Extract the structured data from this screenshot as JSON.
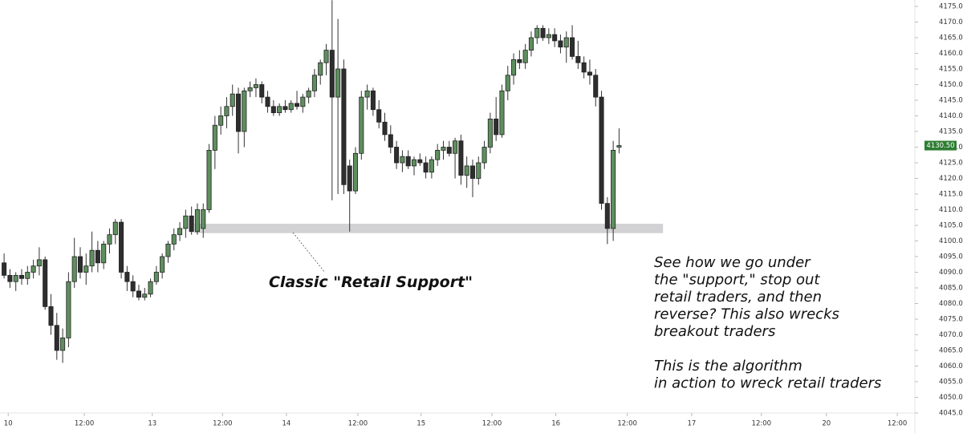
{
  "chart_data": {
    "type": "candlestick",
    "categories": [
      null,
      null,
      null,
      null,
      null,
      null,
      null,
      null,
      null,
      null,
      null,
      null,
      null,
      null,
      null,
      null,
      null,
      null,
      null,
      null,
      null,
      null,
      null,
      null,
      null,
      null,
      null,
      null,
      null,
      null,
      null,
      null,
      null,
      null,
      null,
      null,
      null,
      null,
      null,
      null,
      null,
      null,
      null,
      null,
      null,
      null,
      null,
      null,
      null,
      null,
      null,
      null,
      null,
      null,
      null,
      null,
      null,
      null,
      null,
      null,
      null,
      null,
      null,
      null,
      null,
      null,
      null,
      null,
      null,
      null,
      null,
      null,
      null,
      null,
      null,
      null,
      null,
      null,
      null,
      null,
      null,
      null,
      null,
      null,
      null,
      null,
      null,
      null,
      null,
      null,
      null,
      null,
      null,
      null,
      null,
      null,
      null,
      null,
      null,
      null,
      null,
      null,
      null,
      null,
      null,
      null
    ],
    "ohlc": [
      [
        4093,
        4096,
        4088,
        4089
      ],
      [
        4089,
        4091,
        4085,
        4087
      ],
      [
        4087,
        4090,
        4084,
        4089
      ],
      [
        4089,
        4091,
        4086,
        4088
      ],
      [
        4088,
        4092,
        4086,
        4090
      ],
      [
        4090,
        4094,
        4088,
        4092
      ],
      [
        4092,
        4098,
        4089,
        4094
      ],
      [
        4094,
        4095,
        4078,
        4079
      ],
      [
        4079,
        4083,
        4070,
        4073
      ],
      [
        4073,
        4077,
        4062,
        4065
      ],
      [
        4065,
        4072,
        4061,
        4069
      ],
      [
        4069,
        4090,
        4066,
        4087
      ],
      [
        4087,
        4101,
        4085,
        4095
      ],
      [
        4095,
        4098,
        4088,
        4090
      ],
      [
        4090,
        4096,
        4086,
        4092
      ],
      [
        4092,
        4103,
        4090,
        4097
      ],
      [
        4097,
        4100,
        4090,
        4093
      ],
      [
        4093,
        4100,
        4091,
        4099
      ],
      [
        4099,
        4104,
        4096,
        4102
      ],
      [
        4102,
        4107,
        4099,
        4106
      ],
      [
        4106,
        4107,
        4088,
        4090
      ],
      [
        4090,
        4092,
        4084,
        4087
      ],
      [
        4087,
        4089,
        4082,
        4084
      ],
      [
        4084,
        4086,
        4081,
        4082
      ],
      [
        4082,
        4085,
        4081,
        4083
      ],
      [
        4083,
        4088,
        4082,
        4087
      ],
      [
        4087,
        4092,
        4086,
        4090
      ],
      [
        4090,
        4096,
        4088,
        4095
      ],
      [
        4095,
        4100,
        4093,
        4099
      ],
      [
        4099,
        4104,
        4097,
        4102
      ],
      [
        4102,
        4106,
        4100,
        4104
      ],
      [
        4104,
        4110,
        4101,
        4108
      ],
      [
        4108,
        4111,
        4102,
        4103
      ],
      [
        4103,
        4112,
        4102,
        4110
      ],
      [
        4104,
        4112,
        4101,
        4110
      ],
      [
        4110,
        4131,
        4109,
        4129
      ],
      [
        4129,
        4140,
        4123,
        4137
      ],
      [
        4137,
        4143,
        4134,
        4140
      ],
      [
        4140,
        4146,
        4136,
        4143
      ],
      [
        4143,
        4150,
        4140,
        4147
      ],
      [
        4147,
        4149,
        4128,
        4135
      ],
      [
        4135,
        4149,
        4130,
        4148
      ],
      [
        4148,
        4151,
        4146,
        4149
      ],
      [
        4149,
        4152,
        4146,
        4150
      ],
      [
        4150,
        4151,
        4144,
        4146
      ],
      [
        4146,
        4148,
        4141,
        4143
      ],
      [
        4143,
        4145,
        4140,
        4141
      ],
      [
        4141,
        4144,
        4140,
        4143
      ],
      [
        4143,
        4145,
        4141,
        4142
      ],
      [
        4142,
        4145,
        4141,
        4144
      ],
      [
        4144,
        4148,
        4142,
        4143
      ],
      [
        4143,
        4147,
        4141,
        4146
      ],
      [
        4146,
        4149,
        4144,
        4148
      ],
      [
        4148,
        4155,
        4146,
        4153
      ],
      [
        4153,
        4158,
        4150,
        4157
      ],
      [
        4157,
        4163,
        4153,
        4161
      ],
      [
        4161,
        4177,
        4113,
        4146
      ],
      [
        4146,
        4171,
        4115,
        4155
      ],
      [
        4155,
        4158,
        4115,
        4118
      ],
      [
        4124,
        4126,
        4103,
        4116
      ],
      [
        4116,
        4130,
        4115,
        4128
      ],
      [
        4128,
        4148,
        4126,
        4146
      ],
      [
        4146,
        4150,
        4142,
        4148
      ],
      [
        4148,
        4149,
        4140,
        4142
      ],
      [
        4142,
        4145,
        4136,
        4138
      ],
      [
        4138,
        4141,
        4132,
        4134
      ],
      [
        4134,
        4137,
        4128,
        4130
      ],
      [
        4130,
        4132,
        4123,
        4125
      ],
      [
        4125,
        4129,
        4122,
        4127
      ],
      [
        4127,
        4129,
        4123,
        4124
      ],
      [
        4124,
        4127,
        4121,
        4126
      ],
      [
        4126,
        4128,
        4124,
        4125
      ],
      [
        4125,
        4127,
        4120,
        4122
      ],
      [
        4122,
        4127,
        4120,
        4126
      ],
      [
        4126,
        4131,
        4124,
        4129
      ],
      [
        4129,
        4132,
        4126,
        4130
      ],
      [
        4130,
        4132,
        4127,
        4128
      ],
      [
        4128,
        4133,
        4120,
        4132
      ],
      [
        4132,
        4134,
        4118,
        4121
      ],
      [
        4121,
        4127,
        4117,
        4124
      ],
      [
        4124,
        4126,
        4114,
        4120
      ],
      [
        4120,
        4127,
        4118,
        4125
      ],
      [
        4125,
        4132,
        4123,
        4130
      ],
      [
        4130,
        4141,
        4128,
        4139
      ],
      [
        4139,
        4146,
        4132,
        4134
      ],
      [
        4134,
        4150,
        4133,
        4148
      ],
      [
        4148,
        4156,
        4145,
        4153
      ],
      [
        4153,
        4160,
        4150,
        4158
      ],
      [
        4158,
        4161,
        4155,
        4157
      ],
      [
        4157,
        4163,
        4155,
        4161
      ],
      [
        4161,
        4167,
        4159,
        4165
      ],
      [
        4165,
        4169,
        4163,
        4168
      ],
      [
        4168,
        4169,
        4164,
        4165
      ],
      [
        4165,
        4168,
        4163,
        4166
      ],
      [
        4166,
        4168,
        4162,
        4164
      ],
      [
        4164,
        4166,
        4160,
        4162
      ],
      [
        4162,
        4167,
        4157,
        4165
      ],
      [
        4165,
        4169,
        4158,
        4159
      ],
      [
        4159,
        4164,
        4155,
        4157
      ],
      [
        4157,
        4159,
        4152,
        4154
      ],
      [
        4154,
        4158,
        4150,
        4153
      ],
      [
        4153,
        4155,
        4143,
        4146
      ],
      [
        4146,
        4148,
        4110,
        4112
      ],
      [
        4112,
        4114,
        4099,
        4104
      ],
      [
        4104,
        4132,
        4100,
        4129
      ],
      [
        4130,
        4136,
        4128,
        4130.5
      ]
    ],
    "up_color": "#5e8f5e",
    "down_color": "#2e2e2e",
    "wick_color": "#333333",
    "xlim": [
      -0.7,
      155.5
    ],
    "xticks": [
      {
        "value": 0.7,
        "label": "10"
      },
      {
        "value": 13.7,
        "label": "12:00"
      },
      {
        "value": 25.3,
        "label": "13"
      },
      {
        "value": 37.3,
        "label": "12:00"
      },
      {
        "value": 48.2,
        "label": "14"
      },
      {
        "value": 60.4,
        "label": "12:00"
      },
      {
        "value": 71.2,
        "label": "15"
      },
      {
        "value": 83.3,
        "label": "12:00"
      },
      {
        "value": 94.2,
        "label": "16"
      },
      {
        "value": 106.4,
        "label": "12:00"
      },
      {
        "value": 117.4,
        "label": "17"
      },
      {
        "value": 129.3,
        "label": "12:00"
      },
      {
        "value": 140.4,
        "label": "20"
      },
      {
        "value": 152.5,
        "label": "12:00"
      }
    ],
    "ylim": [
      4045,
      4175
    ],
    "yticks": [
      {
        "value": 4045,
        "label": "4045.00"
      },
      {
        "value": 4050,
        "label": "4050.00"
      },
      {
        "value": 4055,
        "label": "4055.00"
      },
      {
        "value": 4060,
        "label": "4060.00"
      },
      {
        "value": 4065,
        "label": "4065.00"
      },
      {
        "value": 4070,
        "label": "4070.00"
      },
      {
        "value": 4075,
        "label": "4075.00"
      },
      {
        "value": 4080,
        "label": "4080.00"
      },
      {
        "value": 4085,
        "label": "4085.00"
      },
      {
        "value": 4090,
        "label": "4090.00"
      },
      {
        "value": 4095,
        "label": "4095.00"
      },
      {
        "value": 4100,
        "label": "4100.00"
      },
      {
        "value": 4105,
        "label": "4105.00"
      },
      {
        "value": 4110,
        "label": "4110.00"
      },
      {
        "value": 4115,
        "label": "4115.00"
      },
      {
        "value": 4120,
        "label": "4120.00"
      },
      {
        "value": 4125,
        "label": "4125.00"
      },
      {
        "value": 4130,
        "label": "4130.00"
      },
      {
        "value": 4135,
        "label": "4135.00"
      },
      {
        "value": 4140,
        "label": "4140.00"
      },
      {
        "value": 4145,
        "label": "4145.00"
      },
      {
        "value": 4150,
        "label": "4150.00"
      },
      {
        "value": 4155,
        "label": "4155.00"
      },
      {
        "value": 4160,
        "label": "4160.00"
      },
      {
        "value": 4165,
        "label": "4165.00"
      },
      {
        "value": 4170,
        "label": "4170.00"
      },
      {
        "value": 4175,
        "label": "4175.00"
      }
    ],
    "last_price": {
      "value": 4130.5,
      "label": "4130.50",
      "color": "#2e7d32"
    },
    "support_band": {
      "ylim": [
        4102.5,
        4105.5
      ],
      "xlim": [
        32.5,
        112.5
      ],
      "color": "#d2d2d4"
    },
    "annotation": "Classic \"Retail Support\"",
    "notes": [
      [
        "See how we go under",
        "the \"support,\" stop out",
        "retail traders, and then",
        "reverse? This also wrecks",
        "breakout traders"
      ],
      [
        "This is the algorithm",
        "in action to wreck retail traders"
      ]
    ]
  }
}
